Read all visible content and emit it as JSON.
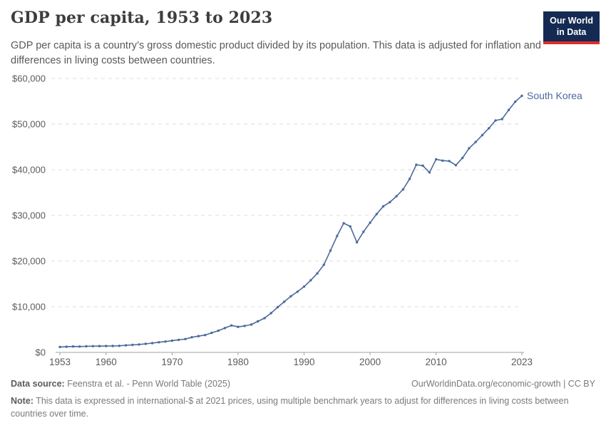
{
  "header": {
    "title": "GDP per capita, 1953 to 2023",
    "subtitle": "GDP per capita is a country’s gross domestic product divided by its population. This data is adjusted for inflation and differences in living costs between countries.",
    "logo": {
      "line1": "Our World",
      "line2": "in Data"
    }
  },
  "chart_data": {
    "type": "line",
    "title": "GDP per capita, 1953 to 2023",
    "xlabel": "",
    "ylabel": "",
    "xlim": [
      1953,
      2023
    ],
    "ylim": [
      0,
      60000
    ],
    "grid": "horizontal-dashed",
    "legend_position": "end-of-line-label",
    "x_ticks": {
      "values": [
        1953,
        1960,
        1970,
        1980,
        1990,
        2000,
        2010,
        2023
      ],
      "labels": [
        "1953",
        "1960",
        "1970",
        "1980",
        "1990",
        "2000",
        "2010",
        "2023"
      ]
    },
    "y_ticks": {
      "values": [
        0,
        10000,
        20000,
        30000,
        40000,
        50000,
        60000
      ],
      "labels": [
        "$0",
        "$10,000",
        "$20,000",
        "$30,000",
        "$40,000",
        "$50,000",
        "$60,000"
      ]
    },
    "x": [
      1953,
      1954,
      1955,
      1956,
      1957,
      1958,
      1959,
      1960,
      1961,
      1962,
      1963,
      1964,
      1965,
      1966,
      1967,
      1968,
      1969,
      1970,
      1971,
      1972,
      1973,
      1974,
      1975,
      1976,
      1977,
      1978,
      1979,
      1980,
      1981,
      1982,
      1983,
      1984,
      1985,
      1986,
      1987,
      1988,
      1989,
      1990,
      1991,
      1992,
      1993,
      1994,
      1995,
      1996,
      1997,
      1998,
      1999,
      2000,
      2001,
      2002,
      2003,
      2004,
      2005,
      2006,
      2007,
      2008,
      2009,
      2010,
      2011,
      2012,
      2013,
      2014,
      2015,
      2016,
      2017,
      2018,
      2019,
      2020,
      2021,
      2022,
      2023
    ],
    "series": [
      {
        "name": "South Korea",
        "color": "#4C6A9C",
        "values": [
          1190,
          1240,
          1290,
          1280,
          1330,
          1360,
          1370,
          1390,
          1410,
          1440,
          1540,
          1640,
          1730,
          1880,
          2030,
          2220,
          2380,
          2560,
          2750,
          2920,
          3320,
          3570,
          3790,
          4280,
          4750,
          5330,
          5900,
          5600,
          5800,
          6100,
          6800,
          7500,
          8600,
          9900,
          11100,
          12300,
          13300,
          14400,
          15800,
          17300,
          19200,
          22300,
          25500,
          28300,
          27600,
          24100,
          26400,
          28400,
          30300,
          32000,
          32900,
          34200,
          35700,
          38000,
          41100,
          40900,
          39400,
          42300,
          42000,
          41900,
          41000,
          42600,
          44700,
          46100,
          47600,
          49100,
          50800,
          51100,
          53100,
          54900,
          56200
        ]
      }
    ]
  },
  "footer": {
    "source_label": "Data source:",
    "source_text": " Feenstra et al. - Penn World Table (2025)",
    "credit": "OurWorldinData.org/economic-growth | CC BY",
    "note_label": "Note:",
    "note_text": " This data is expressed in international-$ at 2021 prices, using multiple benchmark years to adjust for differences in living costs between countries over time."
  },
  "colors": {
    "accent_line": "#4C6A9C",
    "logo_navy": "#142a52",
    "logo_red": "#dc2f2a",
    "gridline": "#dcdcdc",
    "axis": "#a1a1a1",
    "tick_text": "#5b5b5b"
  }
}
